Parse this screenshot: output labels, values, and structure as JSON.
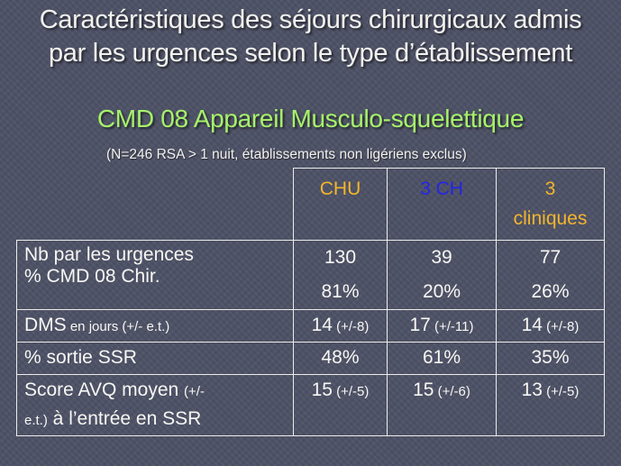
{
  "slide": {
    "title_line1": "Caractéristiques des séjours chirurgicaux admis",
    "title_line2": "par les urgences selon le type d’établissement",
    "subtitle": "CMD 08 Appareil  Musculo-squelettique",
    "note": "(N=246 RSA > 1 nuit, établissements non ligériens exclus)"
  },
  "table": {
    "headers": [
      {
        "label": "CHU",
        "color": "#f3b52c"
      },
      {
        "label": "3 CH",
        "color": "#2424e6"
      },
      {
        "label_line1": "3",
        "label_line2": "cliniques",
        "color": "#f3b52c"
      }
    ],
    "rows": [
      {
        "label_line1": "Nb par les urgences",
        "label_line2": "% CMD 08 Chir.",
        "values": [
          {
            "line1": "130",
            "line2": "81%"
          },
          {
            "line1": "39",
            "line2": "20%"
          },
          {
            "line1": "77",
            "line2": "26%"
          }
        ]
      },
      {
        "label_main": "DMS",
        "label_small": " en jours (+/- e.t.)",
        "values": [
          {
            "main": "14",
            "small": " (+/-8)"
          },
          {
            "main": "17",
            "small": " (+/-11)"
          },
          {
            "main": "14",
            "small": " (+/-8)"
          }
        ]
      },
      {
        "label": "% sortie SSR",
        "values": [
          "48%",
          "61%",
          "35%"
        ]
      },
      {
        "label_part1": "Score AVQ moyen ",
        "label_small1": "(+/-",
        "label_small2": "e.t.)",
        "label_part2": " à l’entrée en SSR",
        "values": [
          {
            "main": "15",
            "small": " (+/-5)"
          },
          {
            "main": "15",
            "small": " (+/-6)"
          },
          {
            "main": "13",
            "small": " (+/-5)"
          }
        ]
      }
    ]
  }
}
